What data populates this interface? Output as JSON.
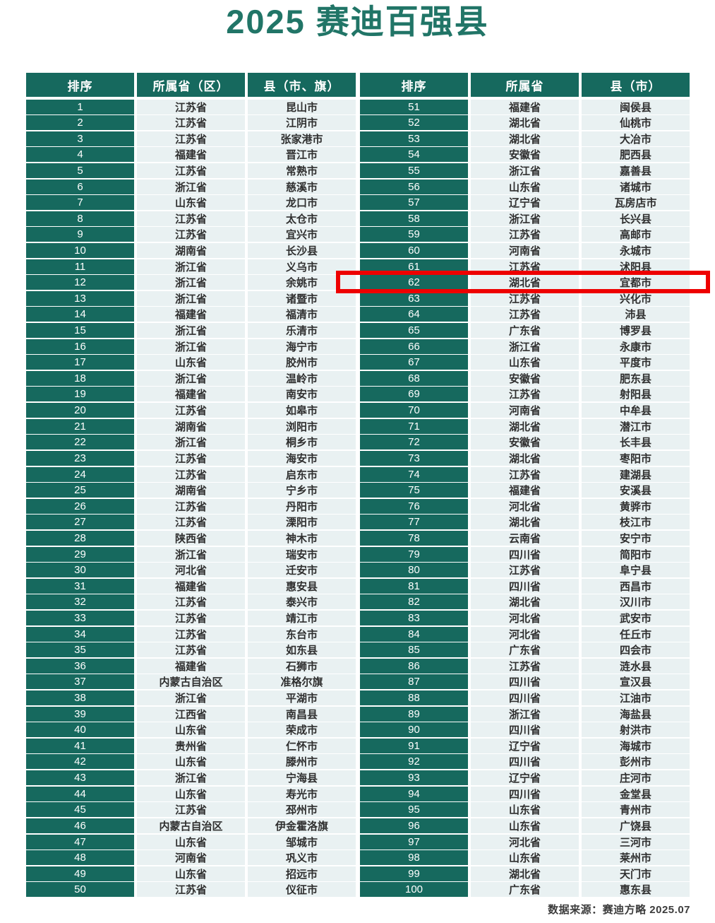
{
  "colors": {
    "teal": "#16695e",
    "title_green": "#217567",
    "light_cell": "#e9f1f2",
    "cell_text": "#2f2f2f",
    "highlight_red": "#ee0000"
  },
  "chart_data": {
    "type": "table",
    "title": "2025 赛迪百强县",
    "source": "数据来源：赛迪方略 2025.07",
    "highlighted_rank": "62",
    "highlighted_row": {
      "rank": "62",
      "province": "湖北省",
      "county": "宜都市"
    },
    "tables": [
      {
        "id": "ranks-1-50",
        "columns": [
          "排序",
          "所属省（区）",
          "县（市、旗）"
        ],
        "rows": [
          [
            "1",
            "江苏省",
            "昆山市"
          ],
          [
            "2",
            "江苏省",
            "江阴市"
          ],
          [
            "3",
            "江苏省",
            "张家港市"
          ],
          [
            "4",
            "福建省",
            "晋江市"
          ],
          [
            "5",
            "江苏省",
            "常熟市"
          ],
          [
            "6",
            "浙江省",
            "慈溪市"
          ],
          [
            "7",
            "山东省",
            "龙口市"
          ],
          [
            "8",
            "江苏省",
            "太仓市"
          ],
          [
            "9",
            "江苏省",
            "宜兴市"
          ],
          [
            "10",
            "湖南省",
            "长沙县"
          ],
          [
            "11",
            "浙江省",
            "义乌市"
          ],
          [
            "12",
            "浙江省",
            "余姚市"
          ],
          [
            "13",
            "浙江省",
            "诸暨市"
          ],
          [
            "14",
            "福建省",
            "福清市"
          ],
          [
            "15",
            "浙江省",
            "乐清市"
          ],
          [
            "16",
            "浙江省",
            "海宁市"
          ],
          [
            "17",
            "山东省",
            "胶州市"
          ],
          [
            "18",
            "浙江省",
            "温岭市"
          ],
          [
            "19",
            "福建省",
            "南安市"
          ],
          [
            "20",
            "江苏省",
            "如皋市"
          ],
          [
            "21",
            "湖南省",
            "浏阳市"
          ],
          [
            "22",
            "浙江省",
            "桐乡市"
          ],
          [
            "23",
            "江苏省",
            "海安市"
          ],
          [
            "24",
            "江苏省",
            "启东市"
          ],
          [
            "25",
            "湖南省",
            "宁乡市"
          ],
          [
            "26",
            "江苏省",
            "丹阳市"
          ],
          [
            "27",
            "江苏省",
            "溧阳市"
          ],
          [
            "28",
            "陕西省",
            "神木市"
          ],
          [
            "29",
            "浙江省",
            "瑞安市"
          ],
          [
            "30",
            "河北省",
            "迁安市"
          ],
          [
            "31",
            "福建省",
            "惠安县"
          ],
          [
            "32",
            "江苏省",
            "泰兴市"
          ],
          [
            "33",
            "江苏省",
            "靖江市"
          ],
          [
            "34",
            "江苏省",
            "东台市"
          ],
          [
            "35",
            "江苏省",
            "如东县"
          ],
          [
            "36",
            "福建省",
            "石狮市"
          ],
          [
            "37",
            "内蒙古自治区",
            "准格尔旗"
          ],
          [
            "38",
            "浙江省",
            "平湖市"
          ],
          [
            "39",
            "江西省",
            "南昌县"
          ],
          [
            "40",
            "山东省",
            "荣成市"
          ],
          [
            "41",
            "贵州省",
            "仁怀市"
          ],
          [
            "42",
            "山东省",
            "滕州市"
          ],
          [
            "43",
            "浙江省",
            "宁海县"
          ],
          [
            "44",
            "山东省",
            "寿光市"
          ],
          [
            "45",
            "江苏省",
            "邳州市"
          ],
          [
            "46",
            "内蒙古自治区",
            "伊金霍洛旗"
          ],
          [
            "47",
            "山东省",
            "邹城市"
          ],
          [
            "48",
            "河南省",
            "巩义市"
          ],
          [
            "49",
            "山东省",
            "招远市"
          ],
          [
            "50",
            "江苏省",
            "仪征市"
          ]
        ]
      },
      {
        "id": "ranks-51-100",
        "columns": [
          "排序",
          "所属省",
          "县（市）"
        ],
        "rows": [
          [
            "51",
            "福建省",
            "闽侯县"
          ],
          [
            "52",
            "湖北省",
            "仙桃市"
          ],
          [
            "53",
            "湖北省",
            "大冶市"
          ],
          [
            "54",
            "安徽省",
            "肥西县"
          ],
          [
            "55",
            "浙江省",
            "嘉善县"
          ],
          [
            "56",
            "山东省",
            "诸城市"
          ],
          [
            "57",
            "辽宁省",
            "瓦房店市"
          ],
          [
            "58",
            "浙江省",
            "长兴县"
          ],
          [
            "59",
            "江苏省",
            "高邮市"
          ],
          [
            "60",
            "河南省",
            "永城市"
          ],
          [
            "61",
            "江苏省",
            "沭阳县"
          ],
          [
            "62",
            "湖北省",
            "宜都市"
          ],
          [
            "63",
            "江苏省",
            "兴化市"
          ],
          [
            "64",
            "江苏省",
            "沛县"
          ],
          [
            "65",
            "广东省",
            "博罗县"
          ],
          [
            "66",
            "浙江省",
            "永康市"
          ],
          [
            "67",
            "山东省",
            "平度市"
          ],
          [
            "68",
            "安徽省",
            "肥东县"
          ],
          [
            "69",
            "江苏省",
            "射阳县"
          ],
          [
            "70",
            "河南省",
            "中牟县"
          ],
          [
            "71",
            "湖北省",
            "潜江市"
          ],
          [
            "72",
            "安徽省",
            "长丰县"
          ],
          [
            "73",
            "湖北省",
            "枣阳市"
          ],
          [
            "74",
            "江苏省",
            "建湖县"
          ],
          [
            "75",
            "福建省",
            "安溪县"
          ],
          [
            "76",
            "河北省",
            "黄骅市"
          ],
          [
            "77",
            "湖北省",
            "枝江市"
          ],
          [
            "78",
            "云南省",
            "安宁市"
          ],
          [
            "79",
            "四川省",
            "简阳市"
          ],
          [
            "80",
            "江苏省",
            "阜宁县"
          ],
          [
            "81",
            "四川省",
            "西昌市"
          ],
          [
            "82",
            "湖北省",
            "汉川市"
          ],
          [
            "83",
            "河北省",
            "武安市"
          ],
          [
            "84",
            "河北省",
            "任丘市"
          ],
          [
            "85",
            "广东省",
            "四会市"
          ],
          [
            "86",
            "江苏省",
            "涟水县"
          ],
          [
            "87",
            "四川省",
            "宣汉县"
          ],
          [
            "88",
            "四川省",
            "江油市"
          ],
          [
            "89",
            "浙江省",
            "海盐县"
          ],
          [
            "90",
            "四川省",
            "射洪市"
          ],
          [
            "91",
            "辽宁省",
            "海城市"
          ],
          [
            "92",
            "四川省",
            "彭州市"
          ],
          [
            "93",
            "辽宁省",
            "庄河市"
          ],
          [
            "94",
            "四川省",
            "金堂县"
          ],
          [
            "95",
            "山东省",
            "青州市"
          ],
          [
            "96",
            "山东省",
            "广饶县"
          ],
          [
            "97",
            "河北省",
            "三河市"
          ],
          [
            "98",
            "山东省",
            "莱州市"
          ],
          [
            "99",
            "湖北省",
            "天门市"
          ],
          [
            "100",
            "广东省",
            "惠东县"
          ]
        ]
      }
    ]
  }
}
